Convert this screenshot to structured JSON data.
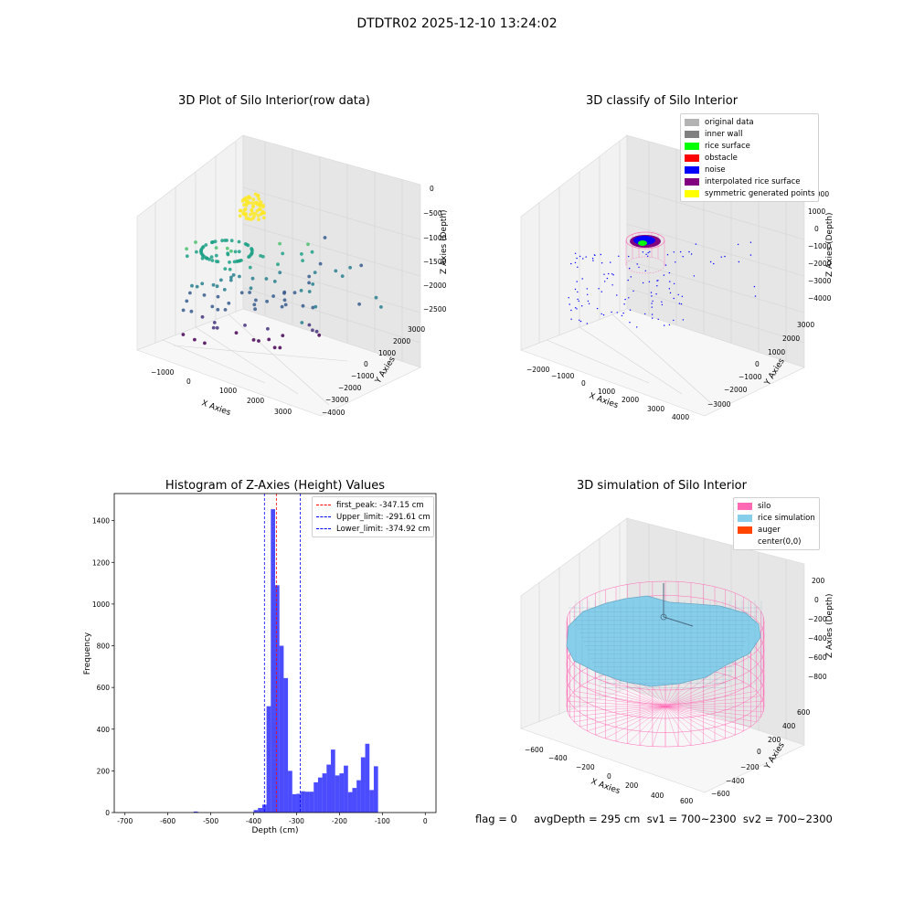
{
  "suptitle": "DTDTR02 2025-12-10 13:24:02",
  "status": {
    "text": "flag = 0     avgDepth = 295 cm  sv1 = 700~2300  sv2 = 700~2300"
  },
  "chart_data": [
    {
      "type": "scatter",
      "title": "3D Plot of Silo Interior(row data)",
      "xlabel": "X Axies",
      "ylabel": "Y Axies",
      "zlabel": "Z Axies (Depth)",
      "x_ticks": [
        "−1000",
        "0",
        "1000",
        "2000",
        "3000"
      ],
      "y_ticks": [
        "3000",
        "2000",
        "1000",
        "0",
        "−1000",
        "−2000",
        "−3000",
        "−4000"
      ],
      "z_ticks": [
        "0",
        "−500",
        "−1000",
        "−1500",
        "−2000",
        "−2500"
      ],
      "colormap": "viridis",
      "grid": true
    },
    {
      "type": "scatter",
      "title": "3D classify of Silo Interior",
      "xlabel": "X Axies",
      "ylabel": "Y Axies",
      "zlabel": "Z Axies (Depth)",
      "x_ticks": [
        "−2000",
        "−1000",
        "0",
        "1000",
        "2000",
        "3000",
        "4000"
      ],
      "y_ticks": [
        "3000",
        "2000",
        "1000",
        "0",
        "−1000",
        "−2000",
        "−3000"
      ],
      "z_ticks": [
        "2000",
        "1000",
        "0",
        "−1000",
        "−2000",
        "−3000",
        "−4000"
      ],
      "legend_position": "top-right",
      "legend": [
        {
          "label": "original data",
          "color": "#b3b3b3"
        },
        {
          "label": "inner wall",
          "color": "#808080"
        },
        {
          "label": "rice surface",
          "color": "#00ff00"
        },
        {
          "label": "obstacle",
          "color": "#ff0000"
        },
        {
          "label": "noise",
          "color": "#0000ff"
        },
        {
          "label": "interpolated rice surface",
          "color": "#800080"
        },
        {
          "label": "symmetric generated points",
          "color": "#ffff00"
        }
      ],
      "grid": true
    },
    {
      "type": "bar",
      "title": "Histogram of Z-Axies (Height) Values",
      "xlabel": "Depth (cm)",
      "ylabel": "Frequency",
      "xlim": [
        -725,
        25
      ],
      "ylim": [
        0,
        1530
      ],
      "x_ticks": [
        -700,
        -600,
        -500,
        -400,
        -300,
        -200,
        -100,
        0
      ],
      "y_ticks": [
        0,
        200,
        400,
        600,
        800,
        1000,
        1200,
        1400
      ],
      "bin_width": 10,
      "bins": [
        {
          "x": -540,
          "v": 5
        },
        {
          "x": -400,
          "v": 12
        },
        {
          "x": -390,
          "v": 22
        },
        {
          "x": -380,
          "v": 38
        },
        {
          "x": -370,
          "v": 510
        },
        {
          "x": -360,
          "v": 1455
        },
        {
          "x": -350,
          "v": 1090
        },
        {
          "x": -340,
          "v": 800
        },
        {
          "x": -330,
          "v": 645
        },
        {
          "x": -320,
          "v": 200
        },
        {
          "x": -310,
          "v": 88
        },
        {
          "x": -300,
          "v": 90
        },
        {
          "x": -290,
          "v": 102
        },
        {
          "x": -280,
          "v": 100
        },
        {
          "x": -270,
          "v": 100
        },
        {
          "x": -260,
          "v": 145
        },
        {
          "x": -250,
          "v": 168
        },
        {
          "x": -240,
          "v": 188
        },
        {
          "x": -230,
          "v": 230
        },
        {
          "x": -220,
          "v": 302
        },
        {
          "x": -210,
          "v": 178
        },
        {
          "x": -200,
          "v": 188
        },
        {
          "x": -190,
          "v": 225
        },
        {
          "x": -180,
          "v": 98
        },
        {
          "x": -170,
          "v": 118
        },
        {
          "x": -160,
          "v": 155
        },
        {
          "x": -150,
          "v": 265
        },
        {
          "x": -140,
          "v": 330
        },
        {
          "x": -130,
          "v": 108
        },
        {
          "x": -120,
          "v": 222
        }
      ],
      "bar_color": "#0000ff",
      "vlines": [
        {
          "label": "first_peak: -347.15 cm",
          "value": -347.15,
          "color": "#ff0000"
        },
        {
          "label": "Upper_limit: -291.61 cm",
          "value": -291.61,
          "color": "#0000ff"
        },
        {
          "label": "Lower_limit: -374.92 cm",
          "value": -374.92,
          "color": "#0000ff"
        }
      ],
      "legend_position": "top-right"
    },
    {
      "type": "surface",
      "title": "3D simulation of Silo Interior",
      "xlabel": "X Axies",
      "ylabel": "Y Axies",
      "zlabel": "Z Axies (Depth)",
      "x_ticks": [
        "−600",
        "−400",
        "−200",
        "0",
        "200",
        "400",
        "600"
      ],
      "y_ticks": [
        "600",
        "400",
        "200",
        "0",
        "−200",
        "−400",
        "−600"
      ],
      "z_ticks": [
        "200",
        "0",
        "−200",
        "−400",
        "−600",
        "−800"
      ],
      "legend_position": "top-right",
      "legend": [
        {
          "label": "silo",
          "color": "#ff69b4"
        },
        {
          "label": "rice simulation",
          "color": "#87ceeb"
        },
        {
          "label": "auger",
          "color": "#ff4500"
        },
        {
          "label": "center(0,0)",
          "color": "#ffffff"
        }
      ],
      "grid": true
    }
  ]
}
